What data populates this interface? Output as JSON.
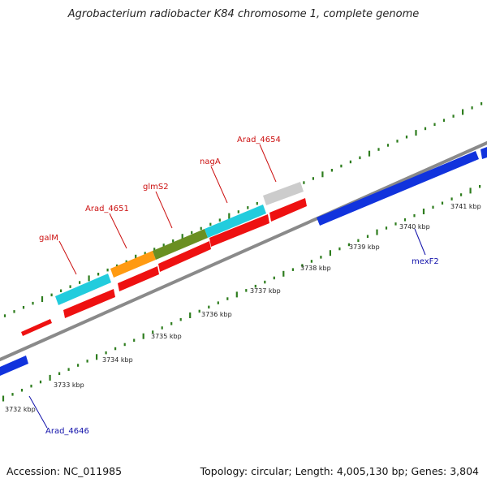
{
  "title": "Agrobacterium radiobacter K84 chromosome 1, complete genome",
  "footer": {
    "accession": "Accession: NC_011985",
    "topology": "Topology: circular; Length: 4,005,130 bp; Genes: 3,804"
  },
  "colors": {
    "backbone": "#8a8a8a",
    "tick": "#2e7d1e",
    "gene_red": "#ee1111",
    "gene_blue": "#1133dd",
    "label_red": "#cc1111",
    "label_blue": "#1111aa"
  },
  "scale_labels": [
    "3732 kbp",
    "3733 kbp",
    "3734 kbp",
    "3735 kbp",
    "3736 kbp",
    "3737 kbp",
    "3738 kbp",
    "3739 kbp",
    "3740 kbp",
    "3741 kbp"
  ],
  "gene_labels": [
    {
      "name": "galM",
      "color": "red"
    },
    {
      "name": "Arad_4651",
      "color": "red"
    },
    {
      "name": "glmS2",
      "color": "red"
    },
    {
      "name": "nagA",
      "color": "red"
    },
    {
      "name": "Arad_4654",
      "color": "red"
    },
    {
      "name": "mexF2",
      "color": "blue"
    },
    {
      "name": "Arad_4646",
      "color": "blue"
    }
  ]
}
